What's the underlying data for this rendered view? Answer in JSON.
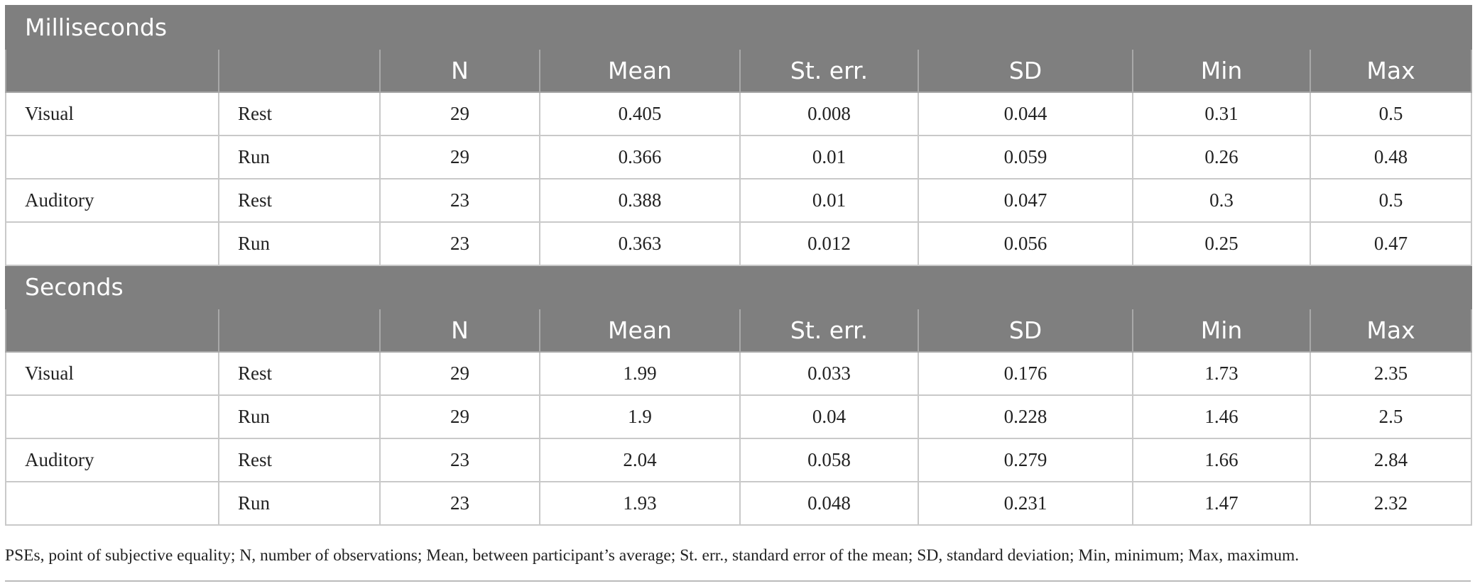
{
  "sections": [
    {
      "title": "Milliseconds",
      "columns": [
        "N",
        "Mean",
        "St. err.",
        "SD",
        "Min",
        "Max"
      ],
      "rows": [
        [
          "Visual",
          "Rest",
          29,
          0.405,
          0.008,
          0.044,
          0.31,
          0.5
        ],
        [
          null,
          "Run",
          29,
          0.366,
          0.01,
          0.059,
          0.26,
          0.48
        ],
        [
          "Auditory",
          "Rest",
          23,
          0.388,
          0.01,
          0.047,
          0.3,
          0.5
        ],
        [
          null,
          "Run",
          23,
          0.363,
          0.012,
          0.056,
          0.25,
          0.47
        ]
      ]
    },
    {
      "title": "Seconds",
      "columns": [
        "N",
        "Mean",
        "St. err.",
        "SD",
        "Min",
        "Max"
      ],
      "rows": [
        [
          "Visual",
          "Rest",
          29,
          1.99,
          0.033,
          0.176,
          1.73,
          2.35
        ],
        [
          null,
          "Run",
          29,
          1.9,
          0.04,
          0.228,
          1.46,
          2.5
        ],
        [
          "Auditory",
          "Rest",
          23,
          2.04,
          0.058,
          0.279,
          1.66,
          2.84
        ],
        [
          null,
          "Run",
          23,
          1.93,
          0.048,
          0.231,
          1.47,
          2.32
        ]
      ]
    }
  ],
  "footnote": "PSEs, point of subjective equality; N, number of observations; Mean, between participant’s average; St. err., standard error of the mean; SD, standard deviation; Min, minimum; Max, maximum."
}
